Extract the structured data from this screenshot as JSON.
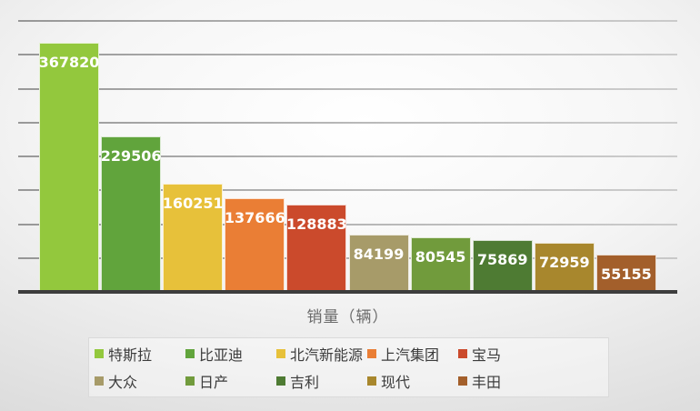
{
  "chart_data": {
    "type": "bar",
    "title": "",
    "xlabel": "销量（辆）",
    "ylabel": "",
    "ylim": [
      0,
      400000
    ],
    "gridline_step": 50000,
    "grid": true,
    "legend_position": "bottom",
    "categories": [
      "特斯拉",
      "比亚迪",
      "北汽新能源",
      "上汽集团",
      "宝马",
      "大众",
      "日产",
      "吉利",
      "现代",
      "丰田"
    ],
    "values": [
      367820,
      229506,
      160251,
      137666,
      128883,
      84199,
      80545,
      75869,
      72959,
      55155
    ],
    "bar_colors": [
      "#93C83D",
      "#61A43C",
      "#E7C13A",
      "#EA7E35",
      "#CB4A2C",
      "#A79B69",
      "#719B3C",
      "#4E7B33",
      "#A8872D",
      "#A35F2B"
    ]
  },
  "colors": {
    "background_edge": "#cecece",
    "background_center": "#ffffff",
    "axis_line": "#3d3d3d",
    "gridline": "#8c8c8c",
    "value_label_text": "#ffffff",
    "axis_title_text": "#6a6a6a",
    "legend_text": "#3c3c3c",
    "legend_background": "#e9e9e9"
  }
}
